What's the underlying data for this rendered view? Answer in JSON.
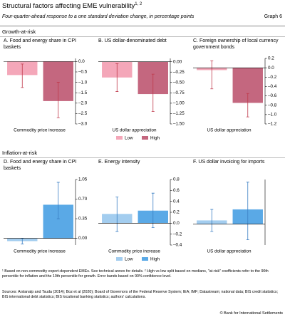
{
  "header": {
    "title": "Structural factors affecting EME vulnerability",
    "title_note": "1, 2",
    "subtitle": "Four-quarter-ahead response to a one standard deviation change, in percentage points",
    "graph": "Graph 6"
  },
  "sections": [
    "Growth-at-risk",
    "Inflation-at-risk"
  ],
  "chart_data": [
    {
      "type": "bar",
      "title": "A. Food and energy share in CPI baskets",
      "categories": [
        "Commodity price increase"
      ],
      "series": [
        {
          "name": "Low",
          "color": "#f4a7b9",
          "values": [
            -0.65
          ],
          "ci": [
            [
              -0.12,
              -1.25
            ]
          ]
        },
        {
          "name": "High",
          "color": "#c4677f",
          "values": [
            -1.9
          ],
          "ci": [
            [
              -1.0,
              -2.7
            ]
          ]
        }
      ],
      "error_color": "#c0394b",
      "ylim": [
        -3.0,
        0.15
      ],
      "yticks": [
        {
          "value": 0,
          "label": "0.0"
        },
        {
          "value": -0.5,
          "label": "–0.5"
        },
        {
          "value": -1.0,
          "label": "–1.0"
        },
        {
          "value": -1.5,
          "label": "–1.5"
        },
        {
          "value": -2.0,
          "label": "–2.0"
        },
        {
          "value": -2.5,
          "label": "–2.5"
        },
        {
          "value": -3.0,
          "label": "–3.0"
        }
      ],
      "legend": false
    },
    {
      "type": "bar",
      "title": "B. US dollar-denominated debt",
      "categories": [
        "US dollar appreciation"
      ],
      "series": [
        {
          "name": "Low",
          "color": "#f4a7b9",
          "values": [
            -0.38
          ],
          "ci": [
            [
              -0.05,
              -0.72
            ]
          ]
        },
        {
          "name": "High",
          "color": "#c4677f",
          "values": [
            -0.78
          ],
          "ci": [
            [
              -0.3,
              -1.2
            ]
          ]
        }
      ],
      "error_color": "#c0394b",
      "ylim": [
        -1.5,
        0.08
      ],
      "yticks": [
        {
          "value": 0,
          "label": "0.00"
        },
        {
          "value": -0.25,
          "label": "–0.25"
        },
        {
          "value": -0.5,
          "label": "–0.50"
        },
        {
          "value": -0.75,
          "label": "–0.75"
        },
        {
          "value": -1.0,
          "label": "–1.00"
        },
        {
          "value": -1.25,
          "label": "–1.25"
        },
        {
          "value": -1.5,
          "label": "–1.50"
        }
      ],
      "legend": true
    },
    {
      "type": "bar",
      "title": "C. Foreign ownership of local currency government bonds",
      "categories": [
        "US dollar appreciation"
      ],
      "series": [
        {
          "name": "Low",
          "color": "#f4a7b9",
          "values": [
            -0.05
          ],
          "ci": [
            [
              0.15,
              -0.45
            ]
          ]
        },
        {
          "name": "High",
          "color": "#c4677f",
          "values": [
            -0.75
          ],
          "ci": [
            [
              -0.55,
              -1.05
            ]
          ]
        }
      ],
      "error_color": "#c0394b",
      "ylim": [
        -1.2,
        0.2
      ],
      "yticks": [
        0.2,
        {
          "value": 0,
          "label": "0.0"
        },
        {
          "value": -0.2,
          "label": "–0.2"
        },
        {
          "value": -0.4,
          "label": "–0.4"
        },
        {
          "value": -0.6,
          "label": "–0.6"
        },
        {
          "value": -0.8,
          "label": "–0.8"
        },
        {
          "value": -1.0,
          "label": "–1.0"
        },
        {
          "value": -1.2,
          "label": "–1.2"
        }
      ],
      "legend": false
    },
    {
      "type": "bar",
      "title": "D. Food and energy share in CPI baskets",
      "categories": [
        "Commodity price increase"
      ],
      "series": [
        {
          "name": "Low",
          "color": "#a3cdef",
          "values": [
            -0.05
          ],
          "ci": [
            [
              0.0,
              -0.1
            ]
          ]
        },
        {
          "name": "High",
          "color": "#5aa9e6",
          "values": [
            0.6
          ],
          "ci": [
            [
              1.0,
              0.35
            ]
          ]
        }
      ],
      "error_color": "#3b7fc4",
      "ylim": [
        -0.12,
        1.05
      ],
      "yticks": [
        1.05,
        {
          "value": 0.7,
          "label": "0.70"
        },
        0.35,
        {
          "value": 0,
          "label": "0.00"
        }
      ],
      "legend": false
    },
    {
      "type": "bar",
      "title": "E. Energy intensity",
      "categories": [
        "Commodity price increase"
      ],
      "series": [
        {
          "name": "Low",
          "color": "#a3cdef",
          "values": [
            0.17
          ],
          "ci": [
            [
              0.48,
              -0.15
            ]
          ]
        },
        {
          "name": "High",
          "color": "#5aa9e6",
          "values": [
            0.23
          ],
          "ci": [
            [
              0.55,
              -0.08
            ]
          ]
        }
      ],
      "error_color": "#3b7fc4",
      "ylim": [
        -0.4,
        0.8
      ],
      "yticks": [
        0.8,
        0.6,
        0.4,
        0.2,
        {
          "value": 0,
          "label": "0.0"
        },
        {
          "value": -0.2,
          "label": "–0.2"
        },
        {
          "value": -0.4,
          "label": "–0.4"
        }
      ],
      "legend": true
    },
    {
      "type": "bar",
      "title": "F. US dollar invoicing for imports",
      "categories": [
        "US dollar appreciation"
      ],
      "series": [
        {
          "name": "Low",
          "color": "#a3cdef",
          "values": [
            0.07
          ],
          "ci": [
            [
              0.28,
              -0.14
            ]
          ]
        },
        {
          "name": "High",
          "color": "#5aa9e6",
          "values": [
            0.28
          ],
          "ci": [
            [
              0.8,
              -0.3
            ]
          ]
        }
      ],
      "error_color": "#3b7fc4",
      "ylim": [
        -0.4,
        0.85
      ],
      "legend": false
    }
  ],
  "footnotes": [
    "¹ Based on non-commodity export-dependent EMEs. See technical annex for details.   ² High vs low split based on medians, \"at-risk\" coefficients refer to the 90th percentile for inflation and the 10th percentile for growth. Error bands based on 90% confidence level."
  ],
  "sources": "Sources: Arslanalp and Tsuda (2014); Boz et al (2020); Board of Governors of the Federal Reserve System; IEA; IMF; Datastream; national data; BIS credit statistics; BIS international debt statistics; BIS locational banking statistics; authors' calculations.",
  "copyright": "© Bank for International Settlements"
}
